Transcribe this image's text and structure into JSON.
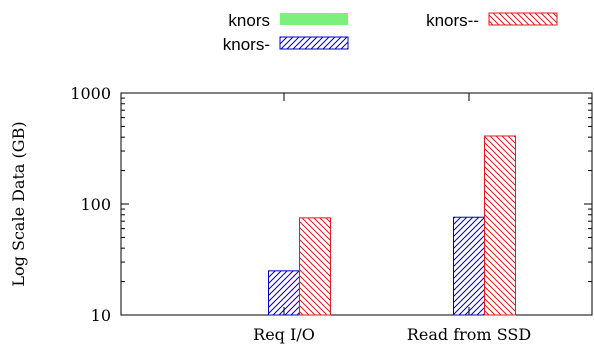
{
  "chart_data": {
    "type": "bar",
    "title": "",
    "xlabel": "",
    "ylabel": "Log Scale Data (GB)",
    "y_scale": "log",
    "ylim": [
      10,
      1000
    ],
    "yticks": [
      {
        "value": 10,
        "label": "10"
      },
      {
        "value": 100,
        "label": "100"
      },
      {
        "value": 1000,
        "label": "1000"
      }
    ],
    "grid": false,
    "legend_position": "top",
    "categories": [
      "Req I/O",
      "Read from SSD"
    ],
    "series": [
      {
        "name": "knors",
        "values": [
          null,
          null
        ],
        "color": "#7cf07c",
        "pattern": "solid"
      },
      {
        "name": "knors-",
        "values": [
          25,
          76
        ],
        "color": "#0000cc",
        "pattern": "hatch-forward"
      },
      {
        "name": "knors--",
        "values": [
          75,
          410
        ],
        "color": "#e8191e",
        "pattern": "hatch-back"
      }
    ]
  }
}
